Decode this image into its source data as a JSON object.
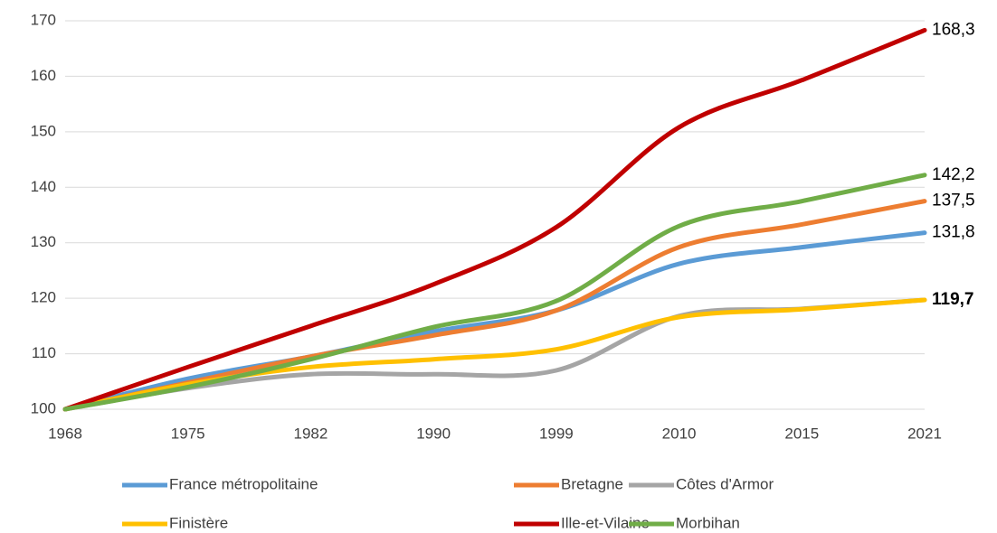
{
  "chart_data": {
    "type": "line",
    "categories": [
      "1968",
      "1975",
      "1982",
      "1990",
      "1999",
      "2010",
      "2015",
      "2021"
    ],
    "ylim": [
      100,
      170
    ],
    "yticks": [
      100,
      110,
      120,
      130,
      140,
      150,
      160,
      170
    ],
    "grid": true,
    "legend": "bottom",
    "series": [
      {
        "name": "France métropolitaine",
        "color": "#5b9bd5",
        "values": [
          100,
          105.5,
          109.5,
          114,
          117.8,
          126.2,
          129.2,
          131.8
        ],
        "value_labels": [
          null,
          null,
          null,
          null,
          null,
          null,
          null,
          "131,8"
        ]
      },
      {
        "name": "Bretagne",
        "color": "#ed7d31",
        "values": [
          100,
          104.8,
          109.5,
          113.3,
          117.8,
          129.2,
          133.3,
          137.5
        ],
        "value_labels": [
          null,
          null,
          null,
          null,
          null,
          null,
          null,
          "137,5"
        ]
      },
      {
        "name": "Côtes d'Armor",
        "color": "#a5a5a5",
        "values": [
          100,
          103.8,
          106.3,
          106.3,
          107,
          116.8,
          118.1,
          119.7
        ]
      },
      {
        "name": "Finistère",
        "color": "#ffc000",
        "values": [
          100,
          104.5,
          107.6,
          109,
          110.8,
          116.6,
          118,
          119.7
        ],
        "value_labels": [
          null,
          null,
          null,
          null,
          null,
          null,
          null,
          "119,7"
        ],
        "value_label_bold": true
      },
      {
        "name": "Ille-et-Vilaine",
        "color": "#c00000",
        "values": [
          100,
          107.6,
          115,
          122.5,
          132.8,
          150.8,
          159.3,
          168.3
        ],
        "value_labels": [
          null,
          null,
          null,
          null,
          null,
          null,
          null,
          "168,3"
        ]
      },
      {
        "name": "Morbihan",
        "color": "#70ad47",
        "values": [
          100,
          104,
          109,
          114.8,
          119.5,
          133,
          137.5,
          142.2
        ],
        "value_labels": [
          null,
          null,
          null,
          null,
          null,
          null,
          null,
          "142,2"
        ]
      }
    ]
  }
}
